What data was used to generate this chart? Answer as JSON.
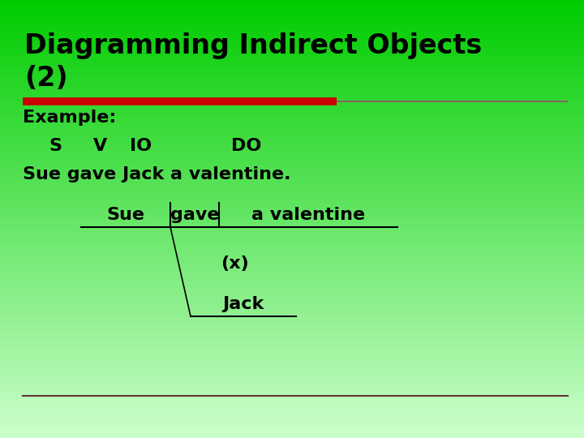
{
  "title_line1": "Diagramming Indirect Objects",
  "title_line2": "(2)",
  "bg_color_top": "#00cc00",
  "bg_color_bottom": "#ccffcc",
  "title_color": "#000000",
  "title_fontsize": 24,
  "red_bar_color": "#cc0000",
  "gray_bar_color": "#886666",
  "example_label": "Example:",
  "sentence": "Sue gave Jack a valentine.",
  "diagram_sue": "Sue",
  "diagram_gave": "gave",
  "diagram_do": "a valentine",
  "diagram_x": "(x)",
  "diagram_jack": "Jack",
  "text_color": "#000000",
  "body_fontsize": 16,
  "diagram_fontsize": 16,
  "bottom_line_color": "#663333"
}
